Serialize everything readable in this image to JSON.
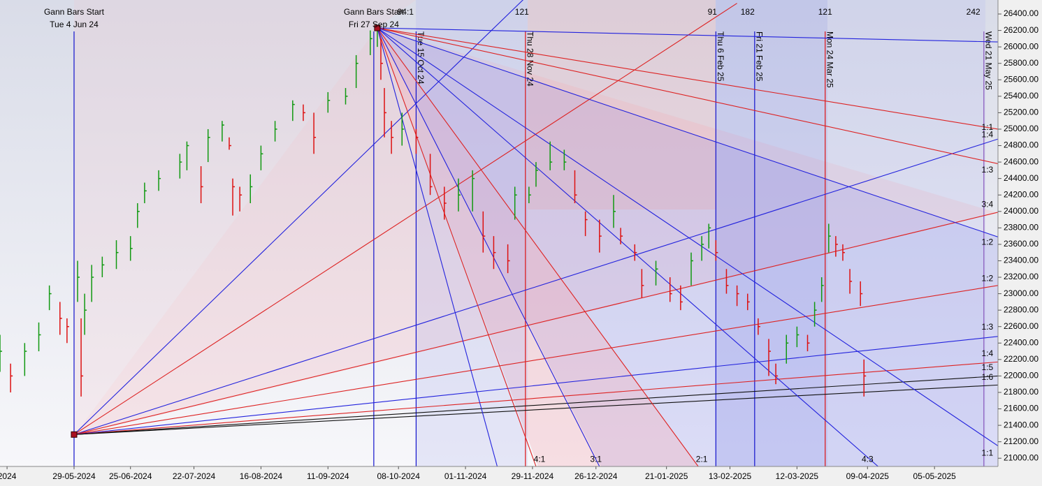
{
  "chart_data": {
    "type": "ohlc",
    "xlim": [
      -21,
      262
    ],
    "ylim": [
      20900,
      26570
    ],
    "xticks": [
      {
        "value": -19,
        "label": "2024"
      },
      {
        "value": 0,
        "label": "29-05-2024"
      },
      {
        "value": 16,
        "label": "25-06-2024"
      },
      {
        "value": 34,
        "label": "22-07-2024"
      },
      {
        "value": 53,
        "label": "16-08-2024"
      },
      {
        "value": 72,
        "label": "11-09-2024"
      },
      {
        "value": 92,
        "label": "08-10-2024"
      },
      {
        "value": 111,
        "label": "01-11-2024"
      },
      {
        "value": 130,
        "label": "29-11-2024"
      },
      {
        "value": 148,
        "label": "26-12-2024"
      },
      {
        "value": 168,
        "label": "21-01-2025"
      },
      {
        "value": 186,
        "label": "13-02-2025"
      },
      {
        "value": 205,
        "label": "12-03-2025"
      },
      {
        "value": 225,
        "label": "09-04-2025"
      },
      {
        "value": 244,
        "label": "05-05-2025"
      }
    ],
    "yticks": [
      {
        "value": 21000,
        "label": "21000.00"
      },
      {
        "value": 21200,
        "label": "21200.00"
      },
      {
        "value": 21400,
        "label": "21400.00"
      },
      {
        "value": 21600,
        "label": "21600.00"
      },
      {
        "value": 21800,
        "label": "21800.00"
      },
      {
        "value": 22000,
        "label": "22000.00"
      },
      {
        "value": 22200,
        "label": "22200.00"
      },
      {
        "value": 22400,
        "label": "22400.00"
      },
      {
        "value": 22600,
        "label": "22600.00"
      },
      {
        "value": 22800,
        "label": "22800.00"
      },
      {
        "value": 23000,
        "label": "23000.00"
      },
      {
        "value": 23200,
        "label": "23200.00"
      },
      {
        "value": 23400,
        "label": "23400.00"
      },
      {
        "value": 23600,
        "label": "23600.00"
      },
      {
        "value": 23800,
        "label": "23800.00"
      },
      {
        "value": 24000,
        "label": "24000.00"
      },
      {
        "value": 24200,
        "label": "24200.00"
      },
      {
        "value": 24400,
        "label": "24400.00"
      },
      {
        "value": 24600,
        "label": "24600.00"
      },
      {
        "value": 24800,
        "label": "24800.00"
      },
      {
        "value": 25000,
        "label": "25000.00"
      },
      {
        "value": 25200,
        "label": "25200.00"
      },
      {
        "value": 25400,
        "label": "25400.00"
      },
      {
        "value": 25600,
        "label": "25600.00"
      },
      {
        "value": 25800,
        "label": "25800.00"
      },
      {
        "value": 26000,
        "label": "26000.00"
      },
      {
        "value": 26200,
        "label": "26200.00"
      },
      {
        "value": 26400,
        "label": "26400.00"
      }
    ],
    "up_color": "#119911",
    "down_color": "#dd1111",
    "bars": {
      "x": [
        -21,
        -18,
        -14,
        -10,
        -7,
        -4,
        -2,
        1,
        2,
        3,
        5,
        8,
        12,
        16,
        18,
        20,
        24,
        30,
        32,
        36,
        38,
        42,
        44,
        45,
        47,
        50,
        53,
        57,
        62,
        65,
        68,
        72,
        77,
        80,
        84,
        86,
        87,
        88,
        90,
        93,
        97,
        101,
        105,
        109,
        113,
        116,
        119,
        123,
        125,
        129,
        131,
        135,
        139,
        142,
        145,
        149,
        153,
        155,
        159,
        161,
        165,
        169,
        172,
        175,
        178,
        180,
        182,
        185,
        188,
        191,
        194,
        197,
        199,
        202,
        205,
        208,
        210,
        212,
        214,
        216,
        218,
        220,
        223,
        224
      ],
      "high": [
        22500,
        22150,
        22400,
        22650,
        23100,
        22900,
        22700,
        23400,
        22700,
        23000,
        23350,
        23450,
        23650,
        23700,
        24100,
        24350,
        24500,
        24700,
        24850,
        24550,
        25000,
        25100,
        24900,
        24400,
        24300,
        24450,
        24800,
        25100,
        25350,
        25300,
        25200,
        25450,
        25500,
        25900,
        26200,
        26250,
        26100,
        25500,
        25100,
        25200,
        25000,
        24700,
        24300,
        24400,
        24500,
        24000,
        23700,
        23600,
        24300,
        24300,
        24600,
        24850,
        24750,
        24500,
        24000,
        23900,
        24200,
        23800,
        23600,
        23300,
        23400,
        23200,
        23100,
        23500,
        23700,
        23850,
        23650,
        23300,
        23100,
        23000,
        22700,
        22450,
        22150,
        22500,
        22600,
        22500,
        22900,
        23200,
        23850,
        23700,
        23600,
        23300,
        23150,
        22200
      ],
      "low": [
        22050,
        21800,
        22000,
        22300,
        22800,
        22500,
        22400,
        22900,
        21750,
        22500,
        22900,
        23200,
        23300,
        23400,
        23800,
        24100,
        24250,
        24400,
        24500,
        24100,
        24600,
        24850,
        24750,
        23950,
        24000,
        24100,
        24500,
        24850,
        25100,
        25100,
        24700,
        25200,
        25300,
        25500,
        25900,
        26000,
        25600,
        24900,
        24700,
        24800,
        24700,
        24200,
        23900,
        24000,
        24000,
        23500,
        23300,
        23250,
        23900,
        24100,
        24300,
        24500,
        24500,
        24100,
        23700,
        23500,
        23800,
        23600,
        23400,
        22950,
        23100,
        22900,
        22800,
        23100,
        23400,
        23550,
        23400,
        23000,
        22850,
        22800,
        22500,
        22000,
        21900,
        22150,
        22350,
        22300,
        22600,
        22900,
        23500,
        23450,
        23400,
        23000,
        22850,
        21750
      ],
      "close": [
        22300,
        22000,
        22300,
        22500,
        23000,
        22700,
        22600,
        23200,
        22000,
        22800,
        23200,
        23350,
        23500,
        23550,
        24000,
        24250,
        24400,
        24600,
        24800,
        24300,
        24900,
        25050,
        24800,
        24300,
        24200,
        24300,
        24700,
        25000,
        25300,
        25200,
        24900,
        25350,
        25400,
        25800,
        26100,
        26200,
        25800,
        25200,
        24900,
        25000,
        24900,
        24300,
        24100,
        24200,
        24400,
        23700,
        23500,
        23400,
        24200,
        24200,
        24500,
        24600,
        24600,
        24200,
        23900,
        23700,
        24000,
        23700,
        23500,
        23100,
        23300,
        23000,
        22900,
        23400,
        23600,
        23800,
        23500,
        23100,
        23000,
        22900,
        22600,
        22300,
        22000,
        22400,
        22500,
        22400,
        22800,
        23100,
        23700,
        23600,
        23500,
        23150,
        23000,
        22000
      ]
    },
    "fans": [
      {
        "origin": [
          0,
          21288
        ],
        "ends": [
          [
            128,
            26600,
            "#2222dd"
          ],
          [
            188,
            26530,
            "#dd2222"
          ],
          [
            262,
            24880,
            "#2222dd"
          ],
          [
            262,
            23990,
            "#dd2222"
          ],
          [
            262,
            23100,
            "#dd2222"
          ],
          [
            262,
            22480,
            "#2222dd"
          ],
          [
            262,
            22170,
            "#dd2222"
          ],
          [
            262,
            22000,
            "#111111"
          ],
          [
            262,
            21890,
            "#111111"
          ]
        ]
      },
      {
        "origin": [
          86,
          26230
        ],
        "ends": [
          [
            262,
            26060,
            "#2222dd"
          ],
          [
            262,
            25000,
            "#dd2222"
          ],
          [
            262,
            24580,
            "#dd2222"
          ],
          [
            262,
            23690,
            "#2222dd"
          ],
          [
            262,
            21150,
            "#2222dd"
          ],
          [
            228,
            20900,
            "#2222dd"
          ],
          [
            177,
            20900,
            "#dd2222"
          ],
          [
            149,
            20900,
            "#2222dd"
          ],
          [
            131,
            20900,
            "#dd2222"
          ],
          [
            120,
            20900,
            "#2222dd"
          ]
        ]
      }
    ],
    "verticals": [
      {
        "x": 0,
        "color": "#1111cc"
      },
      {
        "x": 85,
        "color": "#1111cc"
      },
      {
        "x": 97,
        "color": "#1111cc",
        "label": "Tue 15 Oct 24"
      },
      {
        "x": 128,
        "color": "#dd1111",
        "label": "Thu 28 Nov 24"
      },
      {
        "x": 182,
        "color": "#1111cc",
        "label": "Thu 6 Feb 25"
      },
      {
        "x": 193,
        "color": "#1111cc",
        "label": "Fri 21 Feb 25"
      },
      {
        "x": 213,
        "color": "#dd1111",
        "label": "Mon 24 Mar 25"
      },
      {
        "x": 258,
        "color": "#8855bb",
        "label": "Wed 21 May 25"
      }
    ],
    "start_labels": [
      {
        "x": 0,
        "title": "Gann Bars Start",
        "date": "Tue 4 Jun 24"
      },
      {
        "x": 85,
        "title": "Gann Bars Start",
        "date": "Fri 27 Sep 24"
      }
    ],
    "count_labels": [
      {
        "x": 94,
        "text": "94:1"
      },
      {
        "x": 127,
        "text": "121"
      },
      {
        "x": 181,
        "text": "91"
      },
      {
        "x": 191,
        "text": "182"
      },
      {
        "x": 213,
        "text": "121"
      },
      {
        "x": 255,
        "text": "242"
      }
    ],
    "ratio_labels": [
      {
        "x": 259,
        "y": 25020,
        "text": "1:1"
      },
      {
        "x": 259,
        "y": 24930,
        "text": "1:4"
      },
      {
        "x": 259,
        "y": 24500,
        "text": "1:3"
      },
      {
        "x": 259,
        "y": 24080,
        "text": "3:4"
      },
      {
        "x": 259,
        "y": 23620,
        "text": "1:2"
      },
      {
        "x": 259,
        "y": 23180,
        "text": "1:2"
      },
      {
        "x": 259,
        "y": 22590,
        "text": "1:3"
      },
      {
        "x": 259,
        "y": 22270,
        "text": "1:4"
      },
      {
        "x": 259,
        "y": 22100,
        "text": "1:5"
      },
      {
        "x": 259,
        "y": 21980,
        "text": "1:6"
      },
      {
        "x": 259,
        "y": 21060,
        "text": "1:1"
      },
      {
        "x": 132,
        "y": 20980,
        "text": "4:1"
      },
      {
        "x": 148,
        "y": 20980,
        "text": "3:1"
      },
      {
        "x": 178,
        "y": 20980,
        "text": "2:1"
      },
      {
        "x": 225,
        "y": 20980,
        "text": "4:3"
      }
    ]
  }
}
